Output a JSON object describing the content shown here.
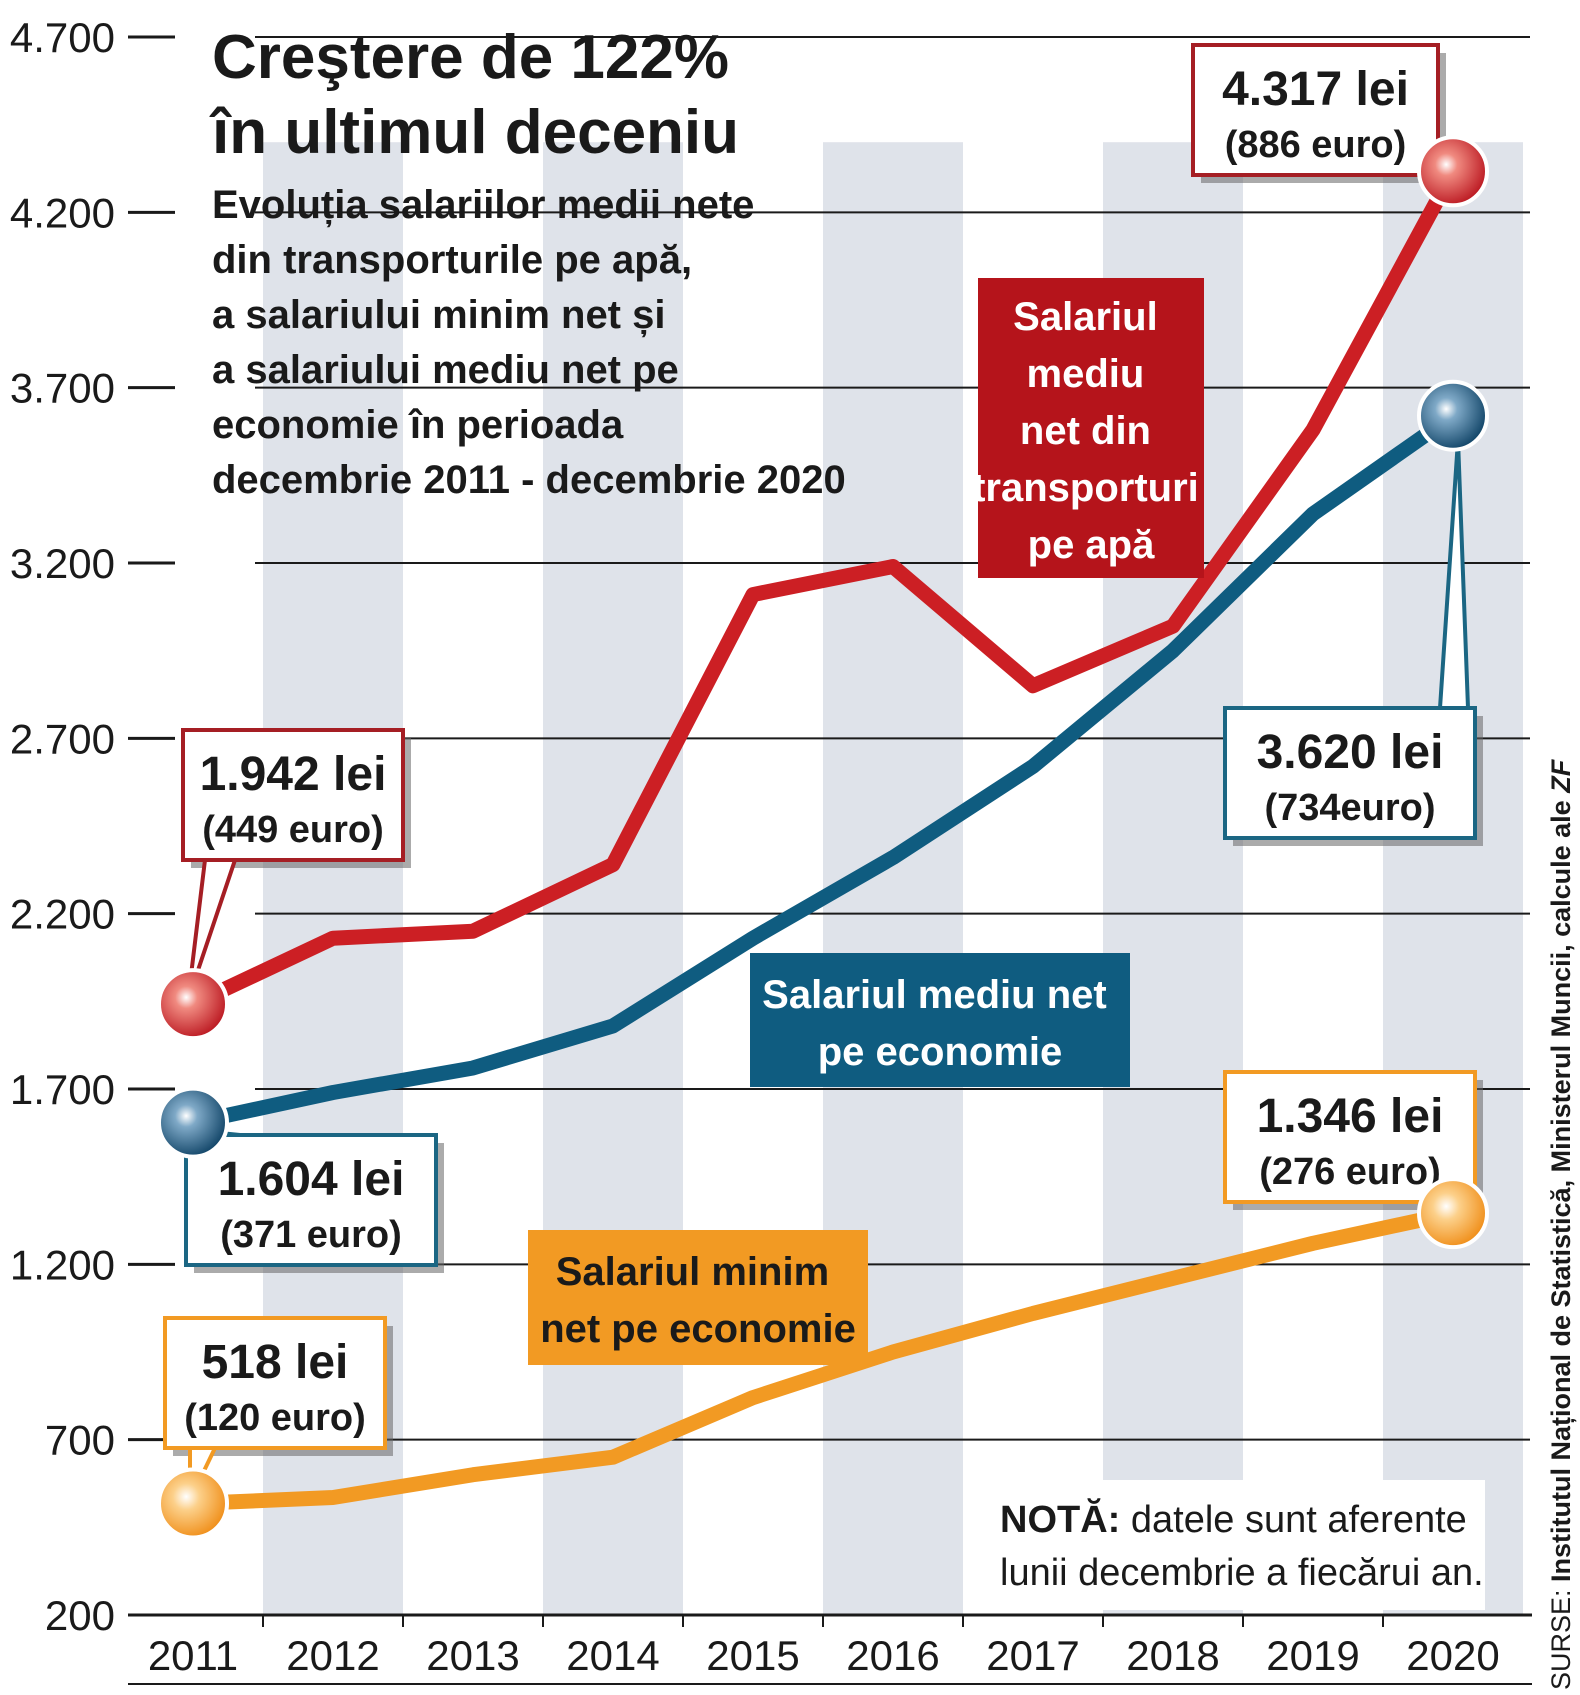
{
  "chart_data": {
    "type": "line",
    "title_lines": [
      "Creştere de 122%",
      "în ultimul deceniu"
    ],
    "subtitle_lines": [
      "Evoluția salariilor medii nete",
      "din transporturile pe apă,",
      "a salariului minim net și",
      "a salariului mediu net pe",
      "economie în perioada",
      "decembrie 2011 - decembrie 2020"
    ],
    "x": [
      "2011",
      "2012",
      "2013",
      "2014",
      "2015",
      "2016",
      "2017",
      "2018",
      "2019",
      "2020"
    ],
    "y_ticks": [
      4700,
      4200,
      3700,
      3200,
      2700,
      2200,
      1700,
      1200,
      700,
      200
    ],
    "y_tick_labels": [
      "4.700",
      "4.200",
      "3.700",
      "3.200",
      "2.700",
      "2.200",
      "1.700",
      "1.200",
      "700",
      "200"
    ],
    "ylim": [
      200,
      4700
    ],
    "grid": "horizontal",
    "series": [
      {
        "name_lines": [
          "Salariul",
          "mediu",
          "net din",
          "transporturi",
          "pe apă"
        ],
        "color": "#cc1f24",
        "values": [
          1942,
          2130,
          2150,
          2340,
          3110,
          3190,
          2850,
          3020,
          3580,
          4317
        ]
      },
      {
        "name_lines": [
          "Salariul mediu net",
          "pe economie"
        ],
        "color": "#0f5c80",
        "values": [
          1604,
          1690,
          1760,
          1880,
          2130,
          2360,
          2620,
          2950,
          3340,
          3620
        ]
      },
      {
        "name_lines": [
          "Salariul minim",
          "net pe economie"
        ],
        "color": "#f29a23",
        "values": [
          518,
          535,
          600,
          650,
          820,
          950,
          1060,
          1160,
          1260,
          1346
        ]
      }
    ],
    "callouts": [
      {
        "lei": "1.942 lei",
        "euro": "(449 euro)",
        "color": "#a51e24"
      },
      {
        "lei": "4.317 lei",
        "euro": "(886 euro)",
        "color": "#a51e24"
      },
      {
        "lei": "1.604 lei",
        "euro": "(371 euro)",
        "color": "#1b6683"
      },
      {
        "lei": "3.620 lei",
        "euro": "(734euro)",
        "color": "#1b6683"
      },
      {
        "lei": "518 lei",
        "euro": "(120 euro)",
        "color": "#f29a23"
      },
      {
        "lei": "1.346 lei",
        "euro": "(276 euro)",
        "color": "#f29a23"
      }
    ],
    "note_bold": "NOTĂ:",
    "note_rest": " datele sunt aferente",
    "note_line2": "lunii decembrie a fiecărui an.",
    "source_prefix": "SURSE: ",
    "source_bold": "Institutul Național de Statistică, Ministerul Muncii, calcule ale ",
    "source_italic": "ZF"
  }
}
